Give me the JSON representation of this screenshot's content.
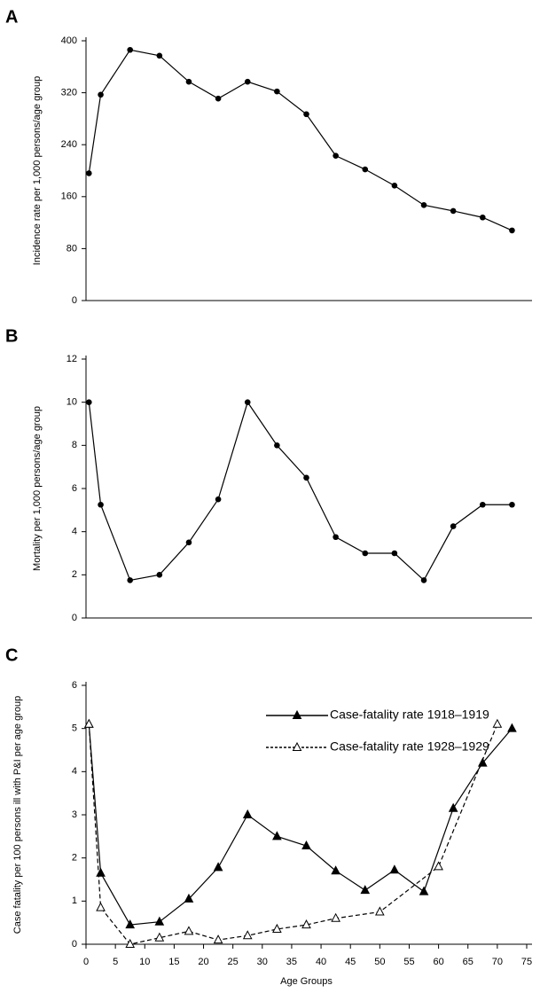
{
  "chart_data": [
    {
      "type": "line",
      "panel_label": "A",
      "ylabel": "Incidence rate per 1,000 persons/age group",
      "xlim": [
        0,
        75
      ],
      "ylim": [
        0,
        400
      ],
      "yticks": [
        0,
        80,
        160,
        240,
        320,
        400
      ],
      "series": [
        {
          "color": "#000000",
          "marker": "circle",
          "dash": "solid",
          "x": [
            0.5,
            2.5,
            7.5,
            12.5,
            17.5,
            22.5,
            27.5,
            32.5,
            37.5,
            42.5,
            47.5,
            52.5,
            57.5,
            62.5,
            67.5,
            72.5
          ],
          "values": [
            196,
            317,
            386,
            377,
            337,
            311,
            337,
            322,
            287,
            223,
            202,
            177,
            147,
            138,
            128,
            108
          ]
        }
      ]
    },
    {
      "type": "line",
      "panel_label": "B",
      "ylabel": "Mortality per 1,000 persons/age group",
      "xlim": [
        0,
        75
      ],
      "ylim": [
        0,
        12
      ],
      "yticks": [
        0,
        2,
        4,
        6,
        8,
        10,
        12
      ],
      "series": [
        {
          "color": "#000000",
          "marker": "circle",
          "dash": "solid",
          "x": [
            0.5,
            2.5,
            7.5,
            12.5,
            17.5,
            22.5,
            27.5,
            32.5,
            37.5,
            42.5,
            47.5,
            52.5,
            57.5,
            62.5,
            67.5,
            72.5
          ],
          "values": [
            10,
            5.25,
            1.75,
            2,
            3.5,
            5.5,
            10,
            8,
            6.5,
            3.75,
            3,
            3,
            1.75,
            4.25,
            5.25,
            5.25
          ]
        }
      ]
    },
    {
      "type": "line",
      "panel_label": "C",
      "ylabel": "Case fatality per 100 persons ill with P&I per age group",
      "xlabel": "Age Groups",
      "xlim": [
        0,
        75
      ],
      "xticks": [
        0,
        5,
        10,
        15,
        20,
        25,
        30,
        35,
        40,
        45,
        50,
        55,
        60,
        65,
        70,
        75
      ],
      "ylim": [
        0,
        6
      ],
      "yticks": [
        0,
        1,
        2,
        3,
        4,
        5,
        6
      ],
      "series": [
        {
          "name": "Case-fatality rate 1918–1919",
          "color": "#000000",
          "marker": "triangle-filled",
          "dash": "solid",
          "x": [
            0.5,
            2.5,
            7.5,
            12.5,
            17.5,
            22.5,
            27.5,
            32.5,
            37.5,
            42.5,
            47.5,
            52.5,
            57.5,
            62.5,
            67.5,
            72.5
          ],
          "values": [
            5.1,
            1.65,
            0.45,
            0.52,
            1.05,
            1.78,
            3.0,
            2.5,
            2.28,
            1.7,
            1.25,
            1.72,
            1.22,
            3.15,
            4.2,
            5.0
          ]
        },
        {
          "name": "Case-fatality rate 1928–1929",
          "color": "#000000",
          "marker": "triangle-open",
          "dash": "dashed",
          "x": [
            0.5,
            2.5,
            7.5,
            12.5,
            17.5,
            22.5,
            27.5,
            32.5,
            37.5,
            42.5,
            50,
            60,
            70
          ],
          "values": [
            5.1,
            0.85,
            0,
            0.15,
            0.3,
            0.1,
            0.2,
            0.35,
            0.45,
            0.6,
            0.75,
            1.8,
            5.1
          ]
        }
      ]
    }
  ]
}
